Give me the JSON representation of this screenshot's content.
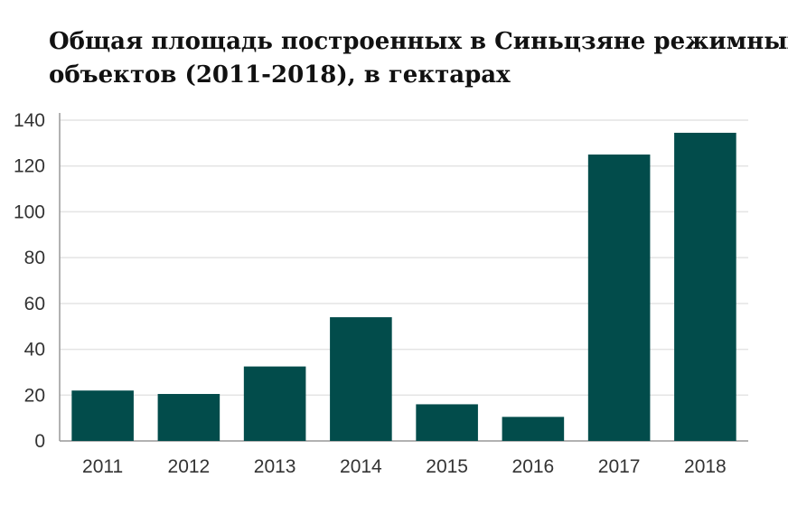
{
  "chart_data": {
    "type": "bar",
    "title_lines": [
      "Общая площадь построенных в Синьцзяне режимных",
      "объектов (2011-2018), в гектарах"
    ],
    "categories": [
      "2011",
      "2012",
      "2013",
      "2014",
      "2015",
      "2016",
      "2017",
      "2018"
    ],
    "values": [
      22,
      20.5,
      32.5,
      54,
      16,
      10.5,
      125,
      134.5
    ],
    "ylim": [
      0,
      140
    ],
    "yticks": [
      0,
      20,
      40,
      60,
      80,
      100,
      120,
      140
    ],
    "xlabel": "",
    "ylabel": "",
    "grid": true,
    "legend": "none",
    "bar_color": "#024c4b",
    "grid_color": "#e4e4e4",
    "axis_color": "#999999"
  }
}
